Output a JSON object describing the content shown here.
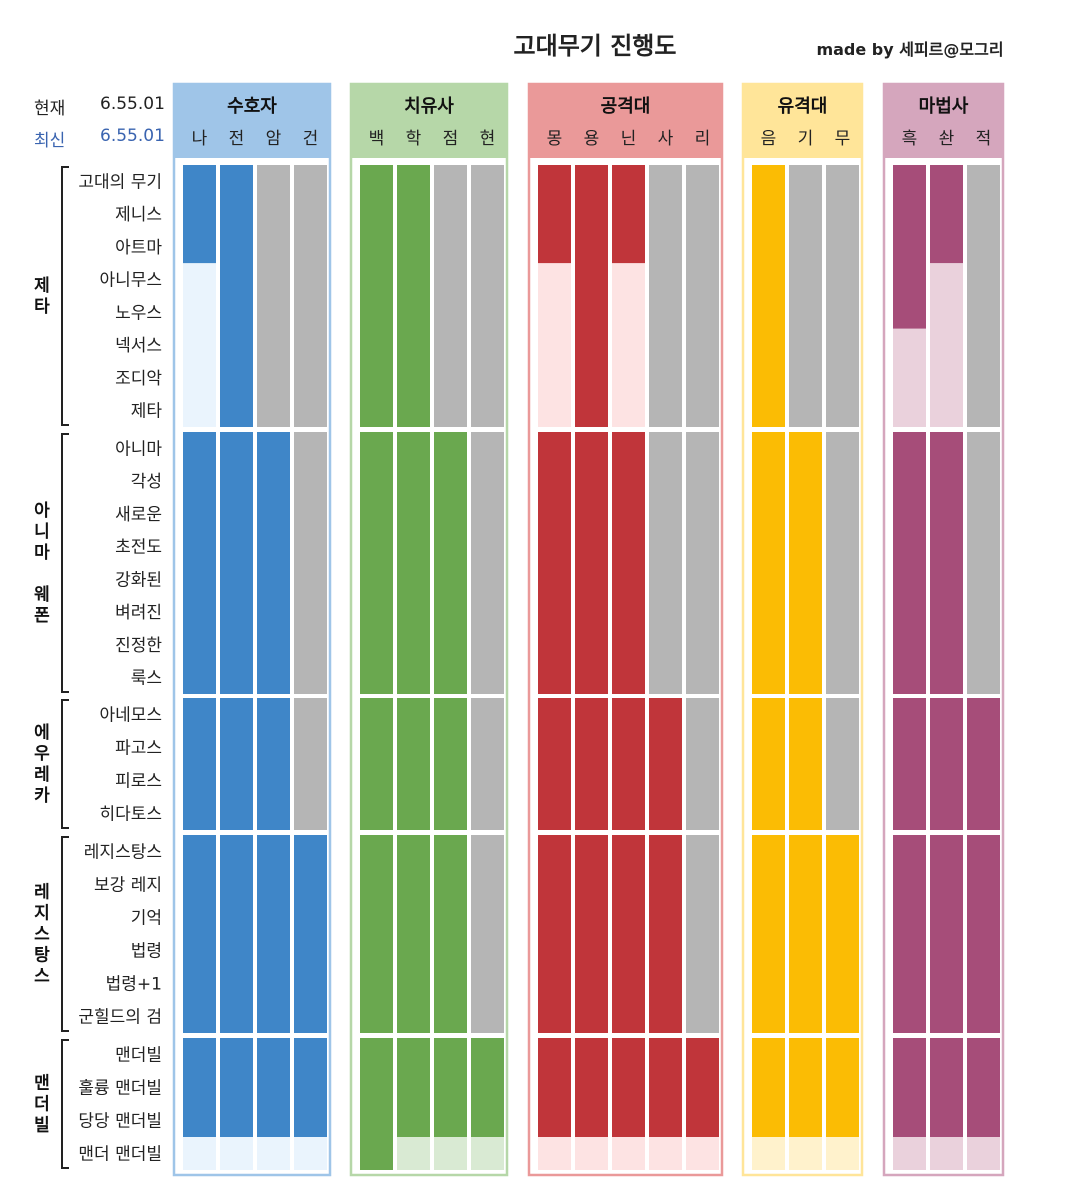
{
  "title": "고대무기 진행도",
  "credit": "made by 세피르@모그리",
  "versions": [
    {
      "label": "현재",
      "value": "6.55.01"
    },
    {
      "label": "최신",
      "value": "6.55.01"
    }
  ],
  "colors": {
    "done_gray": "#b5b5b5"
  },
  "chart_data": {
    "type": "heatmap",
    "title": "고대무기 진행도",
    "groups": [
      {
        "name": "제타",
        "weapons": [
          "고대의 무기",
          "제니스",
          "아트마",
          "아니무스",
          "노우스",
          "넥서스",
          "조디악",
          "제타"
        ]
      },
      {
        "name": "아니마 웨폰",
        "weapons": [
          "아니마",
          "각성",
          "새로운",
          "초전도",
          "강화된",
          "벼려진",
          "진정한",
          "룩스"
        ]
      },
      {
        "name": "에우레카",
        "weapons": [
          "아네모스",
          "파고스",
          "피로스",
          "히다토스"
        ]
      },
      {
        "name": "레지스탕스",
        "weapons": [
          "레지스탕스",
          "보강 레지",
          "기억",
          "법령",
          "법령+1",
          "군힐드의 검"
        ]
      },
      {
        "name": "맨더빌",
        "weapons": [
          "맨더빌",
          "훌륭 맨더빌",
          "당당 맨더빌",
          "맨더 맨더빌"
        ]
      }
    ],
    "roles": [
      {
        "name": "수호자",
        "color": "#3f86c8",
        "header": "#9fc5e8",
        "light": "#eaf4fd",
        "jobs": [
          {
            "name": "나",
            "progress": [
              3,
              8,
              4,
              6,
              3
            ]
          },
          {
            "name": "전",
            "progress": [
              8,
              8,
              4,
              6,
              3
            ]
          },
          {
            "name": "암",
            "progress": [
              0,
              8,
              4,
              6,
              3
            ]
          },
          {
            "name": "건",
            "progress": [
              0,
              0,
              0,
              6,
              3
            ]
          }
        ]
      },
      {
        "name": "치유사",
        "color": "#6aa84f",
        "header": "#b6d7a8",
        "light": "#d9ead3",
        "jobs": [
          {
            "name": "백",
            "progress": [
              8,
              8,
              4,
              6,
              4
            ]
          },
          {
            "name": "학",
            "progress": [
              8,
              8,
              4,
              6,
              3
            ]
          },
          {
            "name": "점",
            "progress": [
              0,
              8,
              4,
              6,
              3
            ]
          },
          {
            "name": "현",
            "progress": [
              0,
              0,
              0,
              0,
              3
            ]
          }
        ]
      },
      {
        "name": "공격대",
        "color": "#c0353a",
        "header": "#ea9999",
        "light": "#fde3e3",
        "jobs": [
          {
            "name": "몽",
            "progress": [
              3,
              8,
              4,
              6,
              3
            ]
          },
          {
            "name": "용",
            "progress": [
              8,
              8,
              4,
              6,
              3
            ]
          },
          {
            "name": "닌",
            "progress": [
              3,
              8,
              4,
              6,
              3
            ]
          },
          {
            "name": "사",
            "progress": [
              0,
              0,
              4,
              6,
              3
            ]
          },
          {
            "name": "리",
            "progress": [
              0,
              0,
              0,
              0,
              3
            ]
          }
        ]
      },
      {
        "name": "유격대",
        "color": "#fbbc04",
        "header": "#ffe599",
        "light": "#fff2cc",
        "jobs": [
          {
            "name": "음",
            "progress": [
              8,
              8,
              4,
              6,
              3
            ]
          },
          {
            "name": "기",
            "progress": [
              0,
              8,
              4,
              6,
              3
            ]
          },
          {
            "name": "무",
            "progress": [
              0,
              0,
              0,
              6,
              3
            ]
          }
        ]
      },
      {
        "name": "마법사",
        "color": "#a64d79",
        "header": "#d5a6bd",
        "light": "#ead1dc",
        "jobs": [
          {
            "name": "흑",
            "progress": [
              5,
              8,
              4,
              6,
              3
            ]
          },
          {
            "name": "솬",
            "progress": [
              3,
              8,
              4,
              6,
              3
            ]
          },
          {
            "name": "적",
            "progress": [
              0,
              0,
              4,
              6,
              3
            ]
          }
        ]
      }
    ]
  }
}
